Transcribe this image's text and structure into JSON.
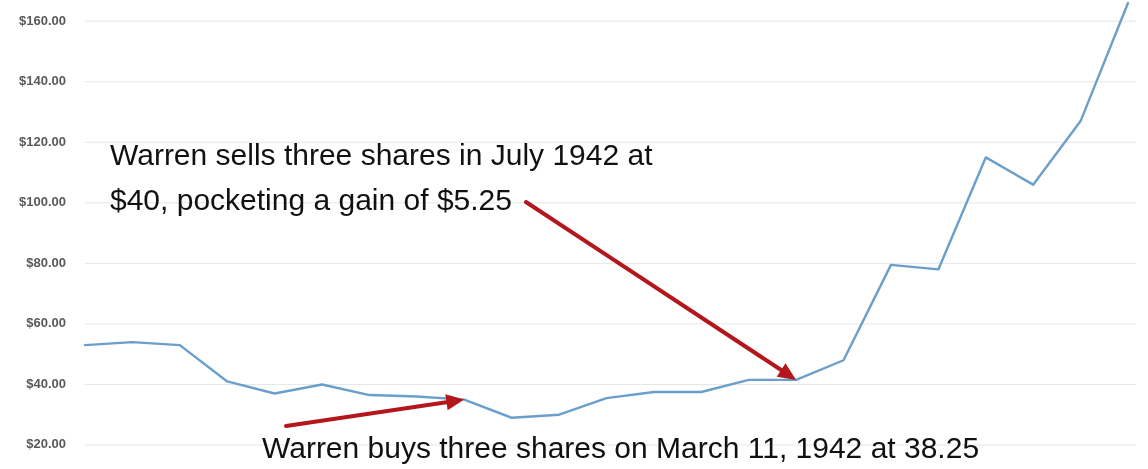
{
  "chart_data": {
    "type": "line",
    "categories": [
      null,
      null,
      null,
      null,
      null,
      null,
      null,
      null,
      null,
      null,
      null,
      null,
      null,
      null,
      null,
      null,
      null,
      null,
      null,
      null,
      null,
      null,
      null
    ],
    "series": [
      {
        "color": "#6b9fcb",
        "values": [
          53,
          54,
          53,
          41,
          37,
          40,
          36.5,
          36,
          35,
          29,
          30,
          35.5,
          37.5,
          37.5,
          41.5,
          41.5,
          48,
          79.5,
          78,
          115,
          106,
          127,
          166
        ]
      }
    ],
    "ylim": [
      20,
      167
    ],
    "yticks": [
      {
        "value": 20,
        "label": "$20.00"
      },
      {
        "value": 40,
        "label": "$40.00"
      },
      {
        "value": 60,
        "label": "$60.00"
      },
      {
        "value": 80,
        "label": "$80.00"
      },
      {
        "value": 100,
        "label": "$100.00"
      },
      {
        "value": 120,
        "label": "$120.00"
      },
      {
        "value": 140,
        "label": "$140.00"
      },
      {
        "value": 160,
        "label": "$160.00"
      }
    ],
    "grid": "y",
    "tick_labels": "y",
    "annotations": [
      "Warren sells three shares in July 1942 at $40, pocketing a gain of $5.25",
      {
        "text": "Warren buys three shares on March 11, 1942 at 38.25",
        "y": 35
      }
    ]
  }
}
